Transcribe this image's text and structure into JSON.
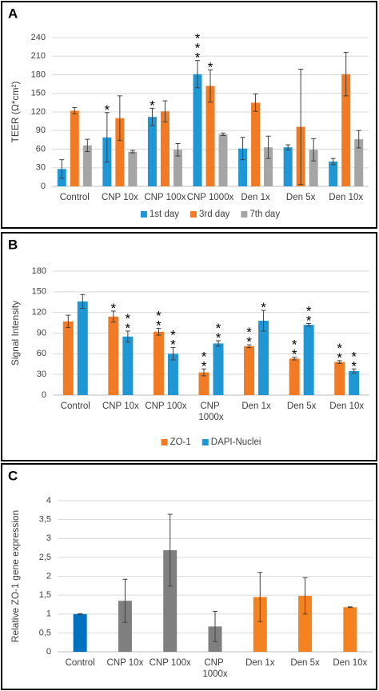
{
  "chart_data": [
    {
      "type": "bar",
      "panel": "A",
      "y_label": "TEER (Ω*cm²)",
      "categories": [
        "Control",
        "CNP 10x",
        "CNP 100x",
        "CNP 1000x",
        "Den 1x",
        "Den 5x",
        "Den 10x"
      ],
      "series": [
        {
          "name": "1st day",
          "color": "#1f97d4",
          "values": [
            28,
            79,
            112,
            181,
            61,
            63,
            40
          ],
          "errors": [
            15,
            40,
            14,
            22,
            18,
            4,
            5
          ],
          "stars": [
            null,
            "*",
            "*",
            "***",
            null,
            null,
            null
          ]
        },
        {
          "name": "3rd day",
          "color": "#f07b24",
          "values": [
            122,
            110,
            121,
            162,
            135,
            96,
            181
          ],
          "errors": [
            5,
            36,
            17,
            26,
            14,
            93,
            35
          ],
          "stars": [
            null,
            null,
            null,
            "*",
            null,
            null,
            null
          ]
        },
        {
          "name": "7th day",
          "color": "#a5a5a5",
          "values": [
            66,
            56,
            59,
            84,
            63,
            59,
            76
          ],
          "errors": [
            10,
            2,
            10,
            2,
            18,
            18,
            14
          ],
          "stars": [
            null,
            null,
            null,
            null,
            null,
            null,
            null
          ]
        }
      ],
      "ylim": [
        0,
        240
      ],
      "yticks": [
        0,
        30,
        60,
        90,
        120,
        150,
        180,
        210,
        240
      ],
      "grid": true,
      "legend": "bottom"
    },
    {
      "type": "bar",
      "panel": "B",
      "y_label": "Signal Intensity",
      "categories": [
        "Control",
        "CNP 10x",
        "CNP 100x",
        "CNP 1000x",
        "Den 1x",
        "Den 5x",
        "Den 10x"
      ],
      "series": [
        {
          "name": "ZO-1",
          "color": "#f07b24",
          "values": [
            107,
            114,
            92,
            33,
            71,
            53,
            48
          ],
          "errors": [
            9,
            8,
            5,
            5,
            2,
            2,
            2
          ],
          "stars": [
            null,
            "*",
            "**",
            "**",
            "**",
            "**",
            "**"
          ]
        },
        {
          "name": "DAPI-Nuclei",
          "color": "#1f97d4",
          "values": [
            136,
            85,
            60,
            75,
            108,
            102,
            35
          ],
          "errors": [
            10,
            8,
            9,
            4,
            15,
            2,
            3
          ],
          "stars": [
            null,
            "**",
            "**",
            "**",
            "*",
            "**",
            "**"
          ]
        }
      ],
      "ylim": [
        0,
        180
      ],
      "yticks": [
        0,
        30,
        60,
        90,
        120,
        150,
        180
      ],
      "grid": true,
      "legend": "bottom"
    },
    {
      "type": "bar",
      "panel": "C",
      "y_label": "Relative ZO-1 gene expression",
      "categories": [
        "Control",
        "CNP 10x",
        "CNP 100x",
        "CNP 1000x",
        "Den 1x",
        "Den 5x",
        "Den 10x"
      ],
      "values": [
        1.0,
        1.35,
        2.69,
        0.67,
        1.45,
        1.48,
        1.18
      ],
      "errors": [
        0.01,
        0.57,
        0.95,
        0.4,
        0.65,
        0.48,
        0.01
      ],
      "colors": [
        "#0070c0",
        "#7f7f7f",
        "#7f7f7f",
        "#7f7f7f",
        "#f58220",
        "#f58220",
        "#f58220"
      ],
      "ylim": [
        0,
        4
      ],
      "yticks": [
        0,
        {
          "value": 0.5,
          "label": "0,5"
        },
        1,
        {
          "value": 1.5,
          "label": "1,5"
        },
        2,
        {
          "value": 2.5,
          "label": "2,5"
        },
        3,
        {
          "value": 3.5,
          "label": "3,5"
        },
        4
      ],
      "grid": true
    }
  ]
}
